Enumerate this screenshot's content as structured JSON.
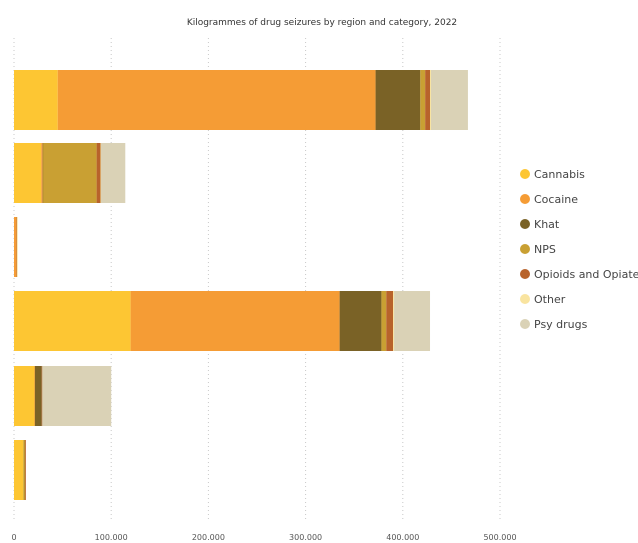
{
  "chart_data": {
    "type": "bar",
    "orientation": "horizontal",
    "stacked": true,
    "title": "Kilogrammes of drug seizures by region and category, 2022",
    "xlabel": "",
    "ylabel": "",
    "xlim": [
      0,
      500000
    ],
    "x_ticks": [
      0,
      100000,
      200000,
      300000,
      400000,
      500000
    ],
    "x_tick_labels": [
      "0",
      "100.000",
      "200.000",
      "300.000",
      "400.000",
      "500.000"
    ],
    "grid": true,
    "legend_position": "right",
    "categories": [
      "",
      "",
      "",
      "",
      "",
      ""
    ],
    "series": [
      {
        "name": "Cannabis",
        "color": "#FDC633",
        "values": [
          45000,
          28000,
          0,
          120000,
          21000,
          10000
        ]
      },
      {
        "name": "Cocaine",
        "color": "#F59C35",
        "values": [
          327000,
          1500,
          2500,
          215000,
          500,
          0
        ]
      },
      {
        "name": "Khat",
        "color": "#7A6226",
        "values": [
          46000,
          500,
          0,
          43000,
          7000,
          500
        ]
      },
      {
        "name": "NPS",
        "color": "#C9A033",
        "values": [
          5000,
          55000,
          0,
          5000,
          0,
          1000
        ]
      },
      {
        "name": "Opioids and Opiates",
        "color": "#B8632B",
        "values": [
          5000,
          4000,
          500,
          7000,
          500,
          500
        ]
      },
      {
        "name": "Other",
        "color": "#F9E4A0",
        "values": [
          1000,
          500,
          500,
          1000,
          0,
          0
        ]
      },
      {
        "name": "Psy drugs",
        "color": "#DAD2B6",
        "values": [
          38000,
          25000,
          0,
          37000,
          71000,
          0
        ]
      }
    ]
  }
}
